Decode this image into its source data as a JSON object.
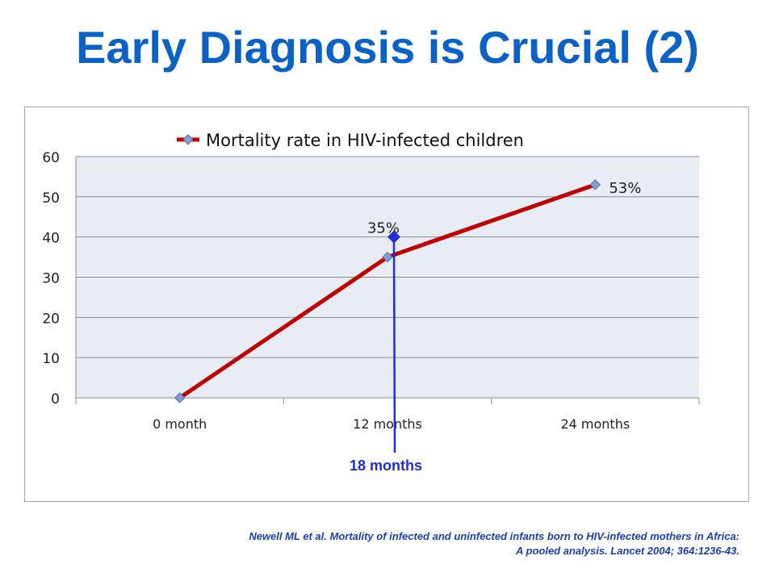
{
  "title": "Early Diagnosis is Crucial (2)",
  "citation": {
    "line1": "Newell ML et al. Mortality of infected and uninfected infants born to HIV-infected mothers in Africa:",
    "line2": "A pooled analysis. Lancet 2004; 364:1236-43."
  },
  "colors": {
    "title": "#0b62c6",
    "series_line": "#c00000",
    "marker_fill": "#7f9fd9",
    "marker_stroke": "#6a6a9a",
    "plot_bg": "#e8edf5",
    "annotation": "#1f2fd6"
  },
  "chart_data": {
    "type": "line",
    "categories": [
      "0  month",
      "12 months",
      "24 months"
    ],
    "series": [
      {
        "name": "Mortality rate in HIV-infected children",
        "values": [
          0,
          35,
          53
        ],
        "data_labels": [
          "",
          "35%",
          "53%"
        ]
      }
    ],
    "ylim": [
      0,
      60
    ],
    "yticks": [
      "0",
      "10",
      "20",
      "30",
      "40",
      "50",
      "60"
    ],
    "grid": true,
    "legend": "top",
    "annotation": {
      "label": "18 months",
      "x_category_position": 1.5,
      "y_value": 40
    }
  }
}
